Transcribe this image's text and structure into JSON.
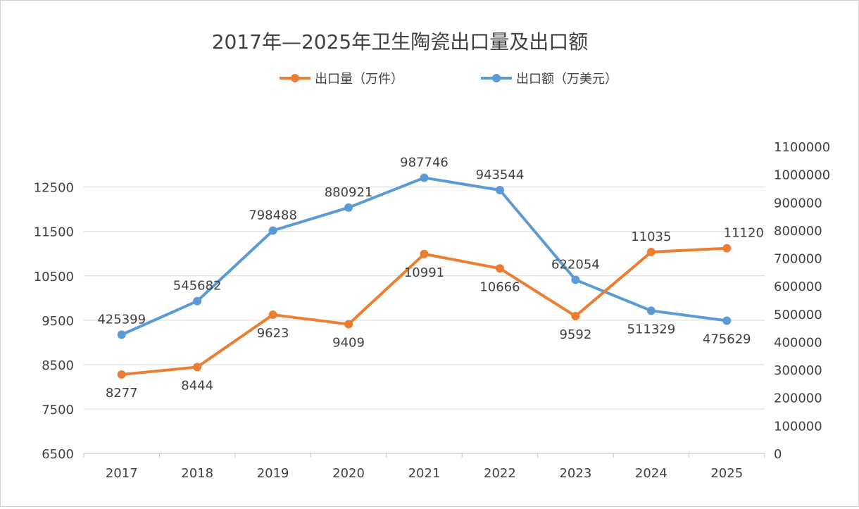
{
  "chart_data": {
    "type": "line",
    "title": "2017年—2025年卫生陶瓷出口量及出口额",
    "categories": [
      "2017",
      "2018",
      "2019",
      "2020",
      "2021",
      "2022",
      "2023",
      "2024",
      "2025"
    ],
    "series": [
      {
        "name": "出口量（万件）",
        "axis": "left",
        "color": "#ed7d31",
        "values": [
          8277,
          8444,
          9623,
          9409,
          10991,
          10666,
          9592,
          11035,
          11120
        ],
        "label_side": [
          "below",
          "below",
          "below",
          "below",
          "below",
          "below",
          "below",
          "above",
          "above"
        ]
      },
      {
        "name": "出口额（万美元）",
        "axis": "right",
        "color": "#5b9bd5",
        "values": [
          425399,
          545682,
          798488,
          880921,
          987746,
          943544,
          622054,
          511329,
          475629
        ],
        "label_side": [
          "above",
          "above",
          "above",
          "above",
          "above",
          "above",
          "above",
          "below",
          "below"
        ]
      }
    ],
    "left_axis": {
      "ylim": [
        6500,
        13414
      ],
      "ticks": [
        6500,
        7500,
        8500,
        9500,
        10500,
        11500,
        12500
      ]
    },
    "right_axis": {
      "ylim": [
        0,
        1100000
      ],
      "ticks": [
        0,
        100000,
        200000,
        300000,
        400000,
        500000,
        600000,
        700000,
        800000,
        900000,
        1000000,
        1100000
      ]
    },
    "grid": true,
    "legend_placement": "top"
  }
}
